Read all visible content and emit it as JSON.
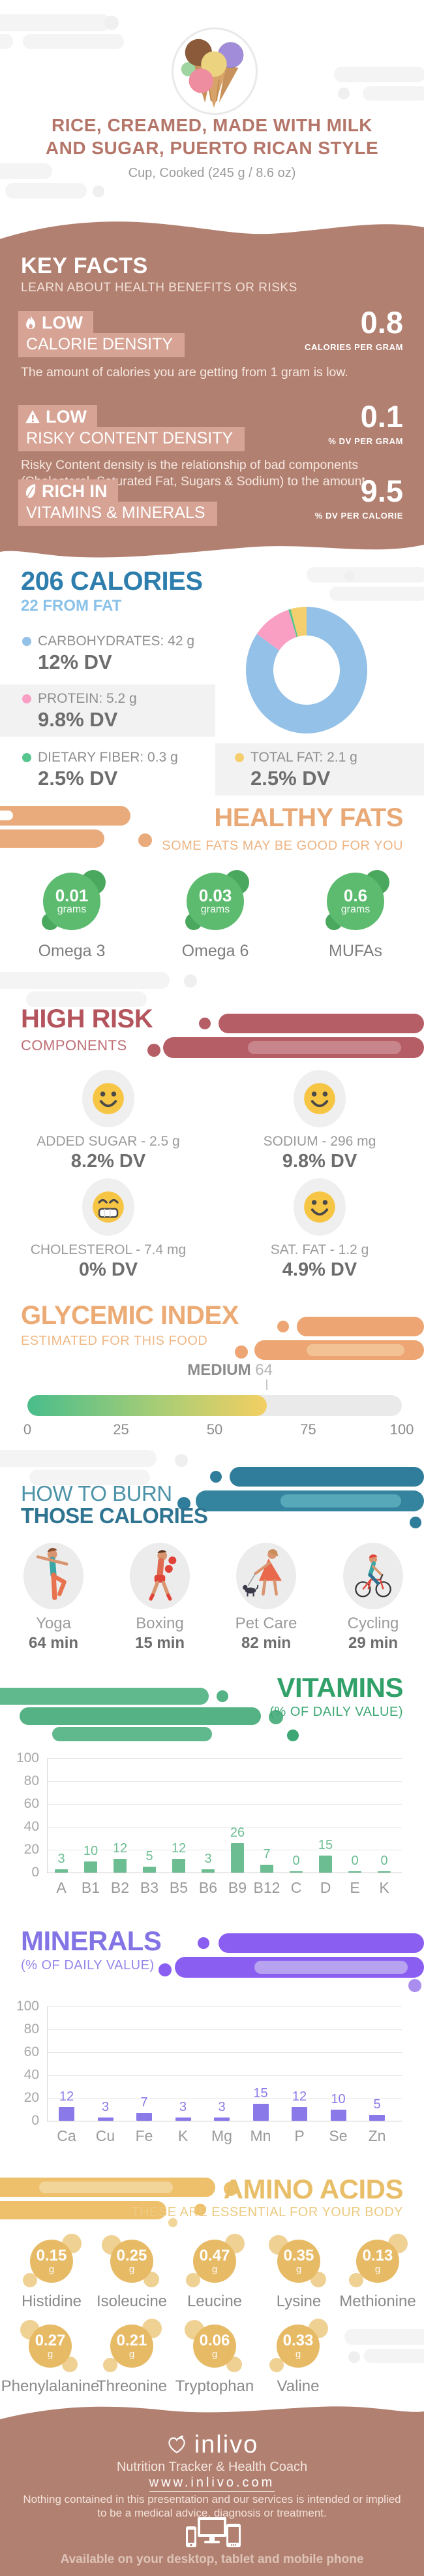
{
  "header": {
    "title_line1": "RICE, CREAMED, MADE WITH MILK",
    "title_line2": "AND SUGAR, PUERTO RICAN STYLE",
    "serving": "Cup, Cooked (245 g / 8.6 oz)"
  },
  "key_facts": {
    "heading": "KEY FACTS",
    "subheading": "LEARN ABOUT HEALTH BENEFITS OR RISKS",
    "facts": [
      {
        "icon": "flame-icon",
        "badge": "LOW",
        "name": "CALORIE DENSITY",
        "value": "0.8",
        "unit": "CALORIES PER GRAM",
        "description": "The amount of calories you are getting from 1 gram is low."
      },
      {
        "icon": "warning-icon",
        "badge": "LOW",
        "name": "RISKY CONTENT DENSITY",
        "value": "0.1",
        "unit": "% DV PER GRAM",
        "description": "Risky Content density is the relationship of bad components (Cholesterol, Saturated Fat, Sugars & Sodium) to the amount (%DV/gr)."
      },
      {
        "icon": "leaf-icon",
        "badge": "RICH IN",
        "name": "VITAMINS & MINERALS",
        "value": "9.5",
        "unit": "% DV PER CALORIE",
        "description": ""
      }
    ]
  },
  "calories": {
    "title": "206 CALORIES",
    "subtitle": "22 FROM FAT",
    "legend": [
      {
        "label": "CARBOHYDRATES: 42 g",
        "dv": "12% DV",
        "color": "#94c1e8"
      },
      {
        "label": "PROTEIN: 5.2 g",
        "dv": "9.8% DV",
        "color": "#f99fc4"
      },
      {
        "label": "DIETARY FIBER: 0.3 g",
        "dv": "2.5% DV",
        "color": "#57c68e"
      },
      {
        "label": "TOTAL FAT: 2.1 g",
        "dv": "2.5% DV",
        "color": "#f5cf6d"
      }
    ]
  },
  "chart_data": [
    {
      "type": "pie",
      "donut": true,
      "title": "206 CALORIES macronutrient breakdown",
      "series": [
        {
          "name": "Carbohydrates",
          "grams": 42,
          "dv_percent": 12,
          "color": "#94c1e8"
        },
        {
          "name": "Protein",
          "grams": 5.2,
          "dv_percent": 9.8,
          "color": "#f99fc4"
        },
        {
          "name": "Dietary Fiber",
          "grams": 0.3,
          "dv_percent": 2.5,
          "color": "#57c68e"
        },
        {
          "name": "Total Fat",
          "grams": 2.1,
          "dv_percent": 2.5,
          "color": "#f5cf6d"
        }
      ]
    },
    {
      "type": "bar",
      "title": "VITAMINS (% OF DAILY VALUE)",
      "categories": [
        "A",
        "B1",
        "B2",
        "B3",
        "B5",
        "B6",
        "B9",
        "B12",
        "C",
        "D",
        "E",
        "K"
      ],
      "values": [
        3,
        10,
        12,
        5,
        12,
        3,
        26,
        7,
        0,
        15,
        0,
        0
      ],
      "ylim": [
        0,
        100
      ],
      "yticks": [
        0,
        20,
        40,
        60,
        80,
        100
      ],
      "bar_color": "#6cbd92",
      "grid": true
    },
    {
      "type": "bar",
      "title": "MINERALS (% OF DAILY VALUE)",
      "categories": [
        "Ca",
        "Cu",
        "Fe",
        "K",
        "Mg",
        "Mn",
        "P",
        "Se",
        "Zn"
      ],
      "values": [
        12,
        3,
        7,
        3,
        3,
        15,
        12,
        10,
        5
      ],
      "ylim": [
        0,
        100
      ],
      "yticks": [
        0,
        20,
        40,
        60,
        80,
        100
      ],
      "bar_color": "#8a7ae9",
      "grid": true
    },
    {
      "type": "gauge",
      "title": "GLYCEMIC INDEX",
      "value": 64,
      "min": 0,
      "max": 100,
      "level": "MEDIUM",
      "scale_labels": [
        "0",
        "25",
        "50",
        "75",
        "100"
      ]
    }
  ],
  "healthy_fats": {
    "heading": "HEALTHY FATS",
    "subheading": "SOME FATS MAY BE GOOD FOR YOU",
    "items": [
      {
        "value": "0.01",
        "unit": "grams",
        "label": "Omega 3"
      },
      {
        "value": "0.03",
        "unit": "grams",
        "label": "Omega 6"
      },
      {
        "value": "0.6",
        "unit": "grams",
        "label": "MUFAs"
      }
    ]
  },
  "high_risk": {
    "heading": "HIGH RISK",
    "subheading": "COMPONENTS",
    "items": [
      {
        "label": "ADDED SUGAR - 2.5 g",
        "dv": "8.2% DV",
        "face": "smile"
      },
      {
        "label": "SODIUM - 296 mg",
        "dv": "9.8% DV",
        "face": "smile"
      },
      {
        "label": "CHOLESTEROL - 7.4 mg",
        "dv": "0% DV",
        "face": "grin"
      },
      {
        "label": "SAT. FAT - 1.2 g",
        "dv": "4.9% DV",
        "face": "smile"
      }
    ]
  },
  "glycemic": {
    "heading": "GLYCEMIC INDEX",
    "subheading": "ESTIMATED FOR THIS FOOD",
    "level": "MEDIUM",
    "value": 64,
    "max": 100
  },
  "burn": {
    "heading_thin": "HOW TO BURN",
    "heading_bold": "THOSE CALORIES",
    "activities": [
      {
        "icon": "yoga-icon",
        "name": "Yoga",
        "duration": "64 min"
      },
      {
        "icon": "boxing-icon",
        "name": "Boxing",
        "duration": "15 min"
      },
      {
        "icon": "pet-care-icon",
        "name": "Pet Care",
        "duration": "82 min"
      },
      {
        "icon": "cycling-icon",
        "name": "Cycling",
        "duration": "29 min"
      }
    ]
  },
  "vitamins": {
    "heading": "VITAMINS",
    "subheading": "(% OF DAILY VALUE)"
  },
  "minerals": {
    "heading": "MINERALS",
    "subheading": "(% OF DAILY VALUE)"
  },
  "amino_acids": {
    "heading": "AMINO ACIDS",
    "subheading": "THESE ARE ESSENTIAL FOR YOUR BODY",
    "items": [
      {
        "value": "0.15",
        "unit": "g",
        "label": "Histidine"
      },
      {
        "value": "0.25",
        "unit": "g",
        "label": "Isoleucine"
      },
      {
        "value": "0.47",
        "unit": "g",
        "label": "Leucine"
      },
      {
        "value": "0.35",
        "unit": "g",
        "label": "Lysine"
      },
      {
        "value": "0.13",
        "unit": "g",
        "label": "Methionine"
      },
      {
        "value": "0.27",
        "unit": "g",
        "label": "Phenylalanine"
      },
      {
        "value": "0.21",
        "unit": "g",
        "label": "Threonine"
      },
      {
        "value": "0.06",
        "unit": "g",
        "label": "Tryptophan"
      },
      {
        "value": "0.33",
        "unit": "g",
        "label": "Valine"
      }
    ]
  },
  "footer": {
    "brand": "inlivo",
    "tagline": "Nutrition Tracker & Health Coach",
    "url": "www.inlivo.com",
    "disclaimer1": "Nothing contained in this presentation and our services is intended or implied",
    "disclaimer2": "to be a medical advice, diagnosis or treatment.",
    "available": "Available on your desktop, tablet and mobile phone"
  },
  "colors": {
    "section_bg": "#b28070",
    "badge_bg": "#d7a394",
    "title": "#b5766a",
    "calories_blue": "#2e7ead",
    "calories_light_blue": "#89c1e8",
    "healthy_orange": "#e9a977",
    "healthy_green": "#5cbb6e",
    "risk_red": "#b4555e",
    "smiley_yellow": "#f7c544",
    "glycemic_orange": "#ecaa74",
    "burn_teal": "#2f7490",
    "vitamins_green": "#31a169",
    "minerals_purple": "#8374e6",
    "amino_gold": "#e9be69"
  }
}
